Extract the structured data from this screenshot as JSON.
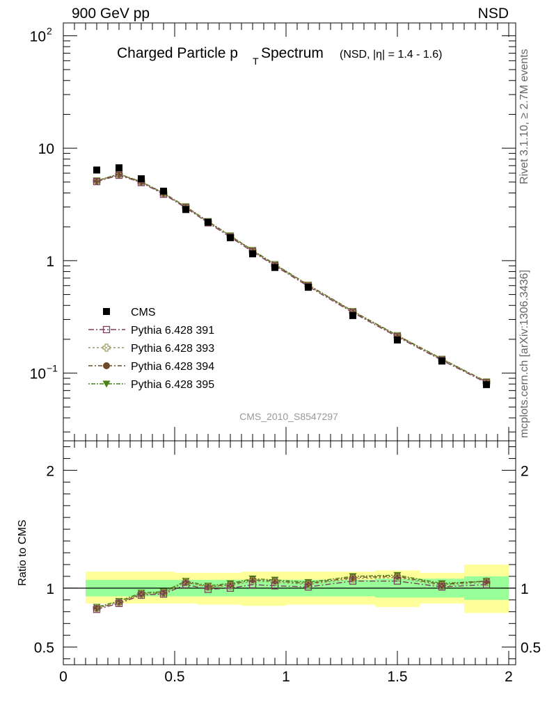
{
  "header": {
    "left": "900 GeV pp",
    "right": "NSD"
  },
  "side_labels": {
    "rivet": "Rivet 3.1.10, ≥ 2.7M events",
    "mcplots": "mcplots.cern.ch [arXiv:1306.3436]"
  },
  "colors": {
    "cms": "#000000",
    "p391": "#7a3f5a",
    "p393": "#9c9a55",
    "p394": "#6b4a26",
    "p395": "#4a7f19",
    "band_inner": "#99ff99",
    "band_outer": "#ffff99"
  },
  "chart_data": [
    {
      "type": "scatter",
      "title": "Charged Particle p",
      "title_sub": "T",
      "title_rest": " Spectrum",
      "title_small": "(NSD, |η| = 1.4 - 1.6)",
      "watermark": "CMS_2010_S8547297",
      "yscale": "log",
      "ylim": [
        0.025,
        130
      ],
      "xlim": [
        0,
        2
      ],
      "ytick_labels": [
        {
          "value": 0.1,
          "base": "10",
          "exp": "−1"
        },
        {
          "value": 1,
          "base": "1",
          "exp": ""
        },
        {
          "value": 10,
          "base": "10",
          "exp": ""
        },
        {
          "value": 100,
          "base": "10",
          "exp": "2"
        }
      ],
      "legend": {
        "placement": "lower-left",
        "entries": [
          "CMS",
          "Pythia 6.428 391",
          "Pythia 6.428 393",
          "Pythia 6.428 394",
          "Pythia 6.428 395"
        ]
      },
      "x": [
        0.15,
        0.25,
        0.35,
        0.45,
        0.55,
        0.65,
        0.75,
        0.85,
        0.95,
        1.1,
        1.3,
        1.5,
        1.7,
        1.9
      ],
      "series": [
        {
          "name": "CMS",
          "values": [
            6.4,
            6.7,
            5.35,
            4.15,
            2.85,
            2.2,
            1.6,
            1.15,
            0.87,
            0.58,
            0.325,
            0.197,
            0.128,
            0.079
          ]
        },
        {
          "name": "Pythia 6.428 391",
          "values": [
            5.05,
            5.75,
            4.95,
            3.9,
            2.95,
            2.17,
            1.62,
            1.2,
            0.9,
            0.59,
            0.345,
            0.21,
            0.13,
            0.082
          ]
        },
        {
          "name": "Pythia 6.428 393",
          "values": [
            5.1,
            5.8,
            5.0,
            3.95,
            3.0,
            2.2,
            1.65,
            1.22,
            0.91,
            0.6,
            0.35,
            0.213,
            0.132,
            0.083
          ]
        },
        {
          "name": "Pythia 6.428 394",
          "values": [
            5.12,
            5.85,
            5.02,
            3.97,
            3.0,
            2.22,
            1.66,
            1.23,
            0.92,
            0.605,
            0.353,
            0.215,
            0.133,
            0.0835
          ]
        },
        {
          "name": "Pythia 6.428 395",
          "values": [
            5.15,
            5.9,
            5.05,
            4.0,
            3.03,
            2.24,
            1.67,
            1.24,
            0.93,
            0.61,
            0.356,
            0.217,
            0.134,
            0.084
          ]
        }
      ]
    },
    {
      "type": "line",
      "ylabel": "Ratio to CMS",
      "ylim": [
        0.35,
        2.25
      ],
      "xlim": [
        0,
        2
      ],
      "xticks": [
        0,
        0.5,
        1,
        1.5,
        2
      ],
      "xtick_labels": [
        "0",
        "0.5",
        "1",
        "1.5",
        "2"
      ],
      "yticks": [
        0.5,
        1,
        2
      ],
      "ytick_labels": [
        "0.5",
        "1",
        "2"
      ],
      "reference_line": 1,
      "bands": [
        {
          "x0": 0.1,
          "x1": 0.2,
          "inner": [
            0.93,
            1.07
          ],
          "outer": [
            0.87,
            1.14
          ]
        },
        {
          "x0": 0.2,
          "x1": 0.3,
          "inner": [
            0.93,
            1.07
          ],
          "outer": [
            0.87,
            1.14
          ]
        },
        {
          "x0": 0.3,
          "x1": 0.4,
          "inner": [
            0.93,
            1.07
          ],
          "outer": [
            0.87,
            1.14
          ]
        },
        {
          "x0": 0.4,
          "x1": 0.5,
          "inner": [
            0.93,
            1.07
          ],
          "outer": [
            0.87,
            1.14
          ]
        },
        {
          "x0": 0.5,
          "x1": 0.6,
          "inner": [
            0.93,
            1.07
          ],
          "outer": [
            0.87,
            1.13
          ]
        },
        {
          "x0": 0.6,
          "x1": 0.7,
          "inner": [
            0.93,
            1.07
          ],
          "outer": [
            0.86,
            1.13
          ]
        },
        {
          "x0": 0.7,
          "x1": 0.8,
          "inner": [
            0.93,
            1.07
          ],
          "outer": [
            0.86,
            1.13
          ]
        },
        {
          "x0": 0.8,
          "x1": 0.9,
          "inner": [
            0.93,
            1.07
          ],
          "outer": [
            0.85,
            1.14
          ]
        },
        {
          "x0": 0.9,
          "x1": 1.0,
          "inner": [
            0.93,
            1.07
          ],
          "outer": [
            0.85,
            1.14
          ]
        },
        {
          "x0": 1.0,
          "x1": 1.2,
          "inner": [
            0.93,
            1.07
          ],
          "outer": [
            0.86,
            1.14
          ]
        },
        {
          "x0": 1.2,
          "x1": 1.4,
          "inner": [
            0.93,
            1.07
          ],
          "outer": [
            0.86,
            1.14
          ]
        },
        {
          "x0": 1.4,
          "x1": 1.6,
          "inner": [
            0.92,
            1.08
          ],
          "outer": [
            0.84,
            1.15
          ]
        },
        {
          "x0": 1.6,
          "x1": 1.8,
          "inner": [
            0.92,
            1.08
          ],
          "outer": [
            0.87,
            1.13
          ]
        },
        {
          "x0": 1.8,
          "x1": 2.0,
          "inner": [
            0.9,
            1.1
          ],
          "outer": [
            0.79,
            1.2
          ]
        }
      ],
      "x": [
        0.15,
        0.25,
        0.35,
        0.45,
        0.55,
        0.65,
        0.75,
        0.85,
        0.95,
        1.1,
        1.3,
        1.5,
        1.7,
        1.9
      ],
      "series": [
        {
          "name": "Pythia 6.428 391",
          "values": [
            0.82,
            0.87,
            0.94,
            0.95,
            1.03,
            0.99,
            1.0,
            1.03,
            1.02,
            1.01,
            1.06,
            1.06,
            1.01,
            1.03
          ]
        },
        {
          "name": "Pythia 6.428 393",
          "values": [
            0.83,
            0.88,
            0.95,
            0.96,
            1.05,
            1.01,
            1.02,
            1.06,
            1.05,
            1.03,
            1.08,
            1.09,
            1.02,
            1.05
          ]
        },
        {
          "name": "Pythia 6.428 394",
          "values": [
            0.83,
            0.88,
            0.95,
            0.96,
            1.05,
            1.01,
            1.03,
            1.07,
            1.06,
            1.04,
            1.09,
            1.1,
            1.03,
            1.06
          ]
        },
        {
          "name": "Pythia 6.428 395",
          "values": [
            0.84,
            0.89,
            0.96,
            0.97,
            1.06,
            1.02,
            1.04,
            1.08,
            1.07,
            1.05,
            1.1,
            1.11,
            1.04,
            1.06
          ]
        }
      ]
    }
  ]
}
